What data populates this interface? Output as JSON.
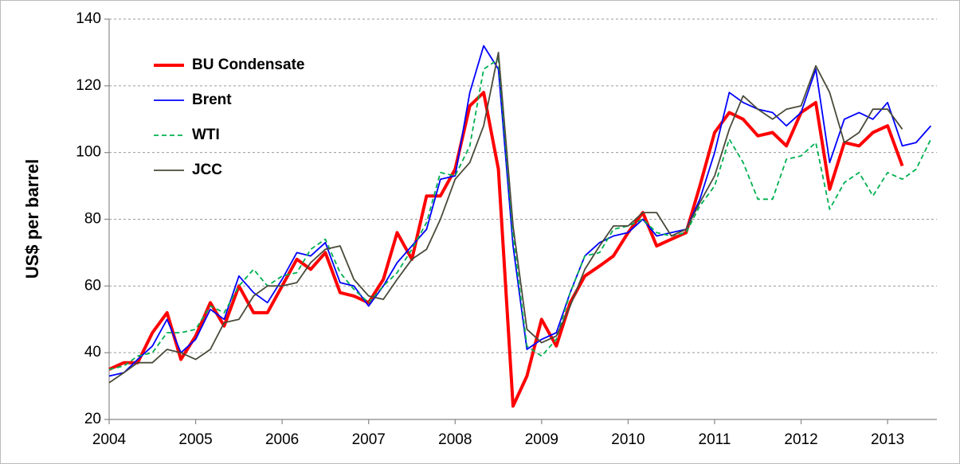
{
  "chart_data": {
    "type": "line",
    "y_label": "US$ per barrel",
    "xlim": [
      2004,
      2013.57
    ],
    "xticks": [
      2004,
      2005,
      2006,
      2007,
      2008,
      2009,
      2010,
      2011,
      2012,
      2013
    ],
    "ylim": [
      20,
      140
    ],
    "yticks": [
      20,
      40,
      60,
      80,
      100,
      120,
      140
    ],
    "grid": true,
    "legend": "top-left",
    "x": [
      2004,
      2004.17,
      2004.33,
      2004.5,
      2004.67,
      2004.83,
      2005,
      2005.17,
      2005.33,
      2005.5,
      2005.67,
      2005.83,
      2006,
      2006.17,
      2006.33,
      2006.5,
      2006.67,
      2006.83,
      2007,
      2007.17,
      2007.33,
      2007.5,
      2007.67,
      2007.83,
      2008,
      2008.17,
      2008.33,
      2008.5,
      2008.67,
      2008.83,
      2009,
      2009.17,
      2009.33,
      2009.5,
      2009.67,
      2009.83,
      2010,
      2010.17,
      2010.33,
      2010.5,
      2010.67,
      2010.83,
      2011,
      2011.17,
      2011.33,
      2011.5,
      2011.67,
      2011.83,
      2012,
      2012.17,
      2012.33,
      2012.5,
      2012.67,
      2012.83,
      2013,
      2013.17,
      2013.33,
      2013.5
    ],
    "series": [
      {
        "name": "BU Condensate",
        "color": "#ff0000",
        "line_style": "solid",
        "values": [
          35,
          37,
          37,
          46,
          52,
          38,
          45,
          55,
          48,
          60,
          52,
          52,
          60,
          68,
          65,
          70,
          58,
          57,
          55,
          62,
          76,
          68,
          87,
          87,
          95,
          114,
          118,
          95,
          24,
          33,
          50,
          42,
          55,
          63,
          66,
          69,
          76,
          82,
          72,
          74,
          76,
          90,
          106,
          112,
          110,
          105,
          106,
          102,
          112,
          115,
          89,
          103,
          102,
          106,
          108,
          96,
          null,
          null
        ]
      },
      {
        "name": "Brent",
        "color": "#0000ff",
        "line_style": "solid",
        "values": [
          33,
          34,
          38,
          42,
          50,
          40,
          44,
          53,
          50,
          63,
          58,
          55,
          62,
          70,
          69,
          73,
          61,
          60,
          54,
          60,
          67,
          72,
          77,
          92,
          93,
          118,
          132,
          125,
          72,
          41,
          44,
          46,
          58,
          69,
          73,
          75,
          76,
          80,
          75,
          76,
          77,
          86,
          100,
          118,
          115,
          113,
          112,
          108,
          112,
          125,
          97,
          110,
          112,
          110,
          115,
          102,
          103,
          108
        ]
      },
      {
        "name": "WTI",
        "color": "#00b050",
        "line_style": "dashed",
        "values": [
          35,
          36,
          39,
          40,
          46,
          46,
          47,
          54,
          52,
          60,
          65,
          60,
          63,
          64,
          71,
          74,
          64,
          59,
          55,
          60,
          64,
          71,
          79,
          94,
          93,
          102,
          125,
          128,
          75,
          42,
          39,
          44,
          58,
          69,
          70,
          77,
          78,
          80,
          76,
          75,
          76,
          84,
          90,
          104,
          97,
          86,
          86,
          98,
          99,
          103,
          83,
          91,
          94,
          87,
          94,
          92,
          95,
          104
        ]
      },
      {
        "name": "JCC",
        "color": "#4a4a3a",
        "line_style": "solid",
        "values": [
          31,
          34,
          37,
          37,
          41,
          40,
          38,
          41,
          49,
          50,
          57,
          60,
          60,
          61,
          67,
          71,
          72,
          62,
          57,
          56,
          62,
          68,
          71,
          80,
          92,
          97,
          108,
          130,
          78,
          47,
          43,
          45,
          54,
          65,
          72,
          78,
          78,
          82,
          82,
          75,
          77,
          85,
          93,
          107,
          117,
          113,
          110,
          113,
          114,
          126,
          118,
          103,
          106,
          113,
          113,
          107,
          null,
          null
        ]
      }
    ]
  }
}
